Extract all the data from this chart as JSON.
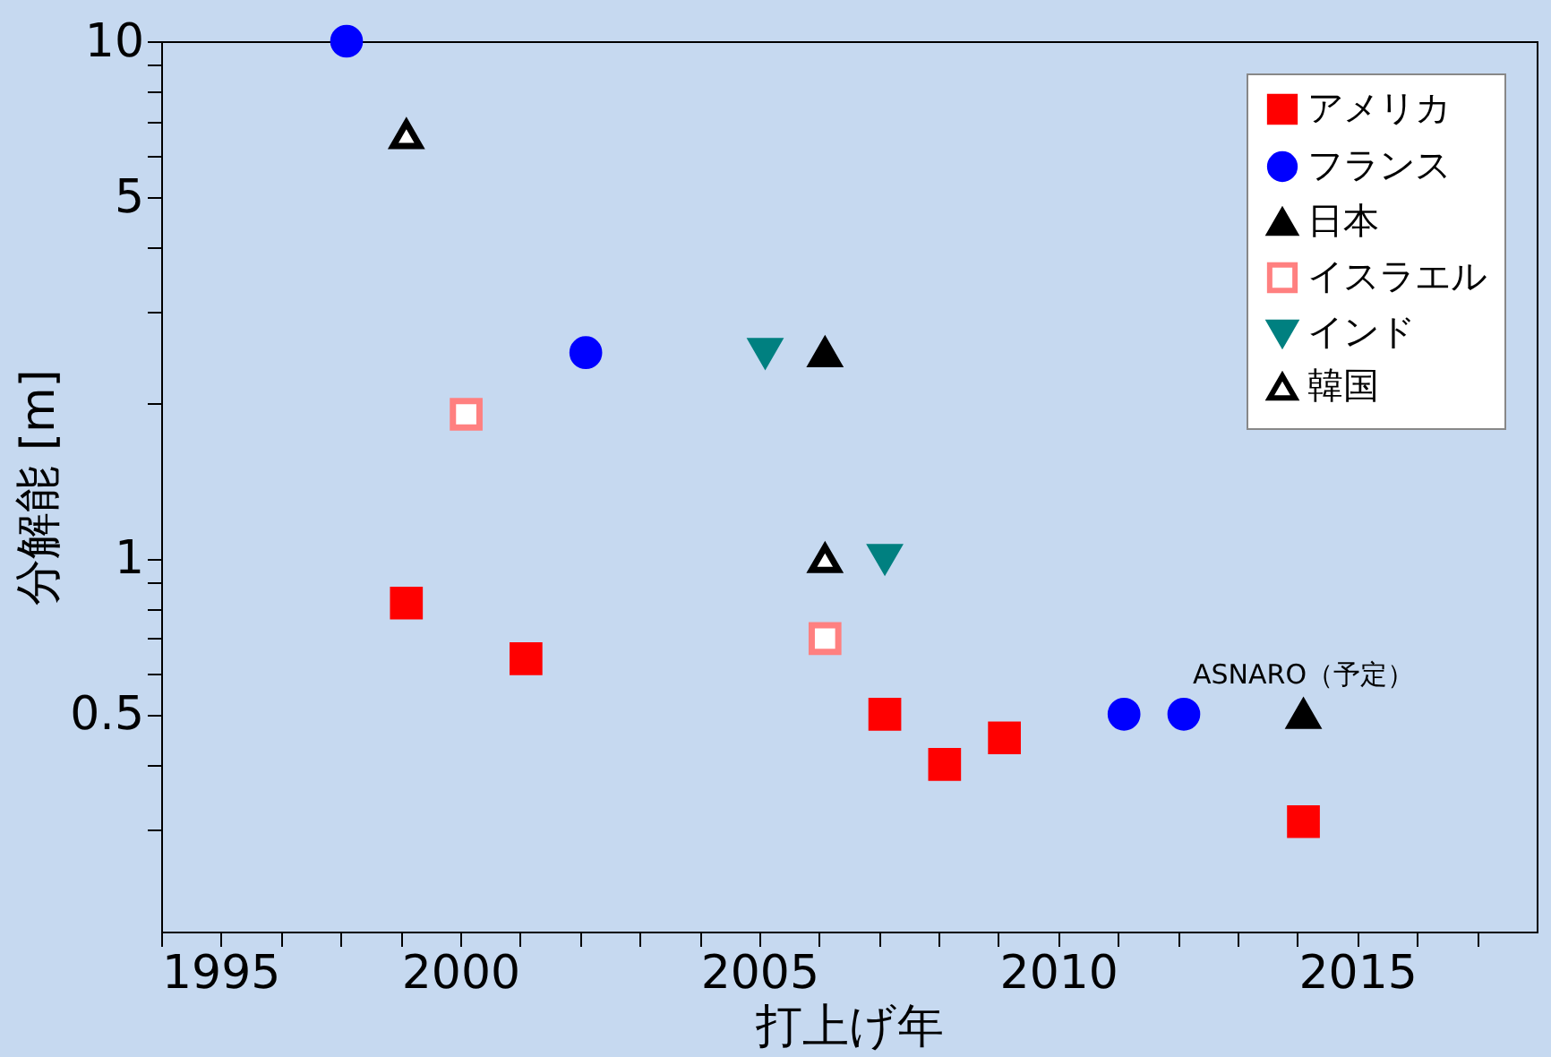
{
  "chart_data": {
    "type": "scatter",
    "xlabel": "打上げ年",
    "ylabel": "分解能 [m]",
    "log": "y",
    "grid": false,
    "legend": "top right",
    "xlim": [
      1995,
      2018
    ],
    "ylim": [
      0.19,
      10
    ],
    "xticks": [
      1995,
      {
        "value": 1996,
        "label": null
      },
      {
        "value": 1997,
        "label": null
      },
      {
        "value": 1998,
        "label": null
      },
      {
        "value": 1999,
        "label": null
      },
      2000,
      {
        "value": 2001,
        "label": null
      },
      {
        "value": 2002,
        "label": null
      },
      {
        "value": 2003,
        "label": null
      },
      {
        "value": 2004,
        "label": null
      },
      2005,
      {
        "value": 2006,
        "label": null
      },
      {
        "value": 2007,
        "label": null
      },
      {
        "value": 2008,
        "label": null
      },
      {
        "value": 2009,
        "label": null
      },
      2010,
      {
        "value": 2011,
        "label": null
      },
      {
        "value": 2012,
        "label": null
      },
      {
        "value": 2013,
        "label": null
      },
      {
        "value": 2014,
        "label": null
      },
      2015,
      {
        "value": 2016,
        "label": null
      },
      {
        "value": 2017,
        "label": null
      }
    ],
    "yticks": [
      {
        "value": 0.3,
        "label": null
      },
      {
        "value": 0.4,
        "label": null
      },
      0.5,
      {
        "value": 0.6,
        "label": null
      },
      {
        "value": 0.7,
        "label": null
      },
      {
        "value": 0.8,
        "label": null
      },
      {
        "value": 0.9,
        "label": null
      },
      1,
      {
        "value": 2,
        "label": null
      },
      {
        "value": 3,
        "label": null
      },
      {
        "value": 4,
        "label": null
      },
      5,
      {
        "value": 6,
        "label": null
      },
      {
        "value": 7,
        "label": null
      },
      {
        "value": 8,
        "label": null
      },
      {
        "value": 9,
        "label": null
      },
      10
    ],
    "series": [
      {
        "name": "アメリカ",
        "color": "#ff0000",
        "marker": "square",
        "x": [
          1999.1,
          2001.1,
          2007.1,
          2008.1,
          2009.1,
          2014.1
        ],
        "values": [
          0.82,
          0.64,
          0.5,
          0.4,
          0.45,
          0.31
        ]
      },
      {
        "name": "フランス",
        "color": "#0000ff",
        "marker": "circle",
        "x": [
          1998.1,
          2002.1,
          2011.1,
          2012.1
        ],
        "values": [
          10,
          2.5,
          0.5,
          0.5
        ]
      },
      {
        "name": "日本",
        "color": "#000000",
        "marker": "triangle",
        "x": [
          2006.1,
          2014.1
        ],
        "values": [
          2.5,
          0.5
        ]
      },
      {
        "name": "イスラエル",
        "color": "#ff8080",
        "marker": "square-open",
        "x": [
          2000.1,
          2006.1
        ],
        "values": [
          1.9,
          0.7
        ]
      },
      {
        "name": "インド",
        "color": "#008080",
        "marker": "triangle-down",
        "x": [
          2005.1,
          2007.1
        ],
        "values": [
          2.5,
          1
        ]
      },
      {
        "name": "韓国",
        "color": "#000000",
        "marker": "triangle-open",
        "x": [
          1999.1,
          2006.1
        ],
        "values": [
          6.6,
          1
        ]
      }
    ],
    "annotations": [
      {
        "text": "ASNARO（予定）",
        "x": 2014.1,
        "y": 0.5
      }
    ]
  }
}
